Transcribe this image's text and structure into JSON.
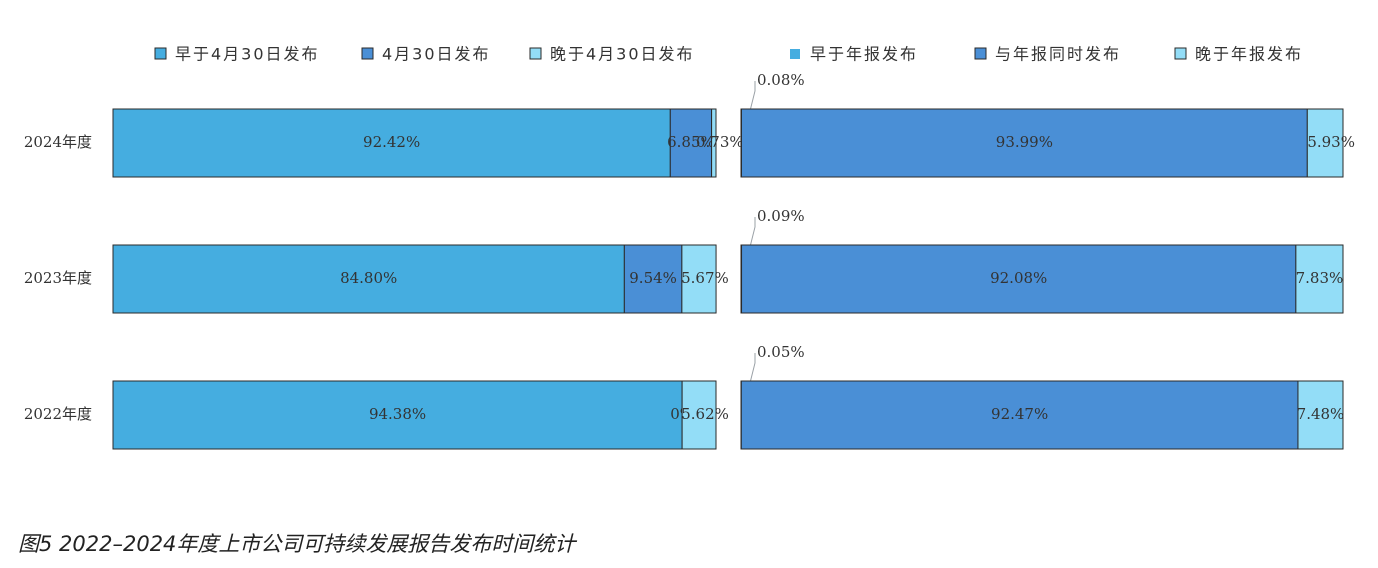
{
  "caption": "图5 2022–2024年度上市公司可持续发展报告发布时间统计",
  "colors": {
    "early": "#45ade0",
    "same": "#4a8fd6",
    "late": "#93ddf7",
    "border": "#2a2a2a",
    "leader": "#9aa0a6"
  },
  "chart_data": [
    {
      "type": "bar",
      "orientation": "horizontal",
      "stacked": true,
      "percent": true,
      "categories": [
        "2024年度",
        "2023年度",
        "2022年度"
      ],
      "series": [
        {
          "name": "早于4月30日发布",
          "values": [
            92.42,
            84.8,
            94.38
          ],
          "labels": [
            "92.42%",
            "84.80%",
            "94.38%"
          ],
          "color_key": "early"
        },
        {
          "name": "4月30日发布",
          "values": [
            6.85,
            9.54,
            0
          ],
          "labels": [
            "6.85%",
            "9.54%",
            "0%"
          ],
          "color_key": "same"
        },
        {
          "name": "晚于4月30日发布",
          "values": [
            0.73,
            5.67,
            5.62
          ],
          "labels": [
            "0.73%",
            "5.67%",
            "5.62%"
          ],
          "color_key": "late"
        }
      ],
      "xlim": [
        0,
        100
      ],
      "legend_position": "top"
    },
    {
      "type": "bar",
      "orientation": "horizontal",
      "stacked": true,
      "percent": true,
      "categories": [
        "2024年度",
        "2023年度",
        "2022年度"
      ],
      "series": [
        {
          "name": "早于年报发布",
          "values": [
            0.08,
            0.09,
            0.05
          ],
          "labels": [
            "0.08%",
            "0.09%",
            "0.05%"
          ],
          "color_key": "early",
          "label_callout": true
        },
        {
          "name": "与年报同时发布",
          "values": [
            93.99,
            92.08,
            92.47
          ],
          "labels": [
            "93.99%",
            "92.08%",
            "92.47%"
          ],
          "color_key": "same"
        },
        {
          "name": "晚于年报发布",
          "values": [
            5.93,
            7.83,
            7.48
          ],
          "labels": [
            "5.93%",
            "7.83%",
            "7.48%"
          ],
          "color_key": "late"
        }
      ],
      "xlim": [
        0,
        100
      ],
      "legend_position": "top"
    }
  ]
}
